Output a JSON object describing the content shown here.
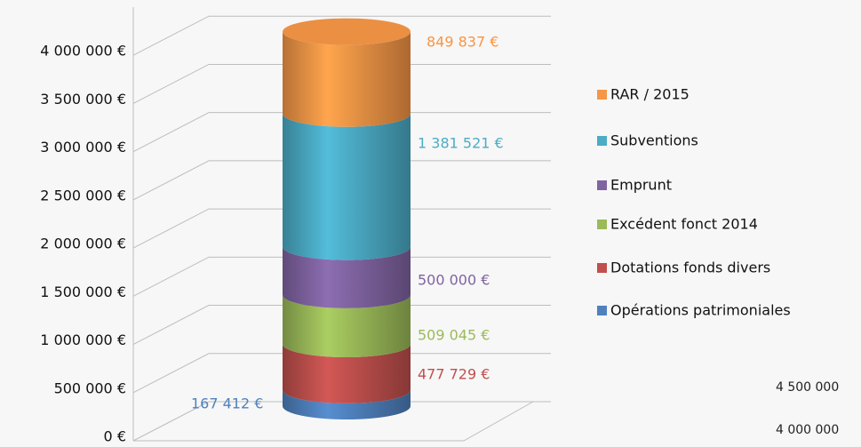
{
  "chart_data": {
    "type": "stacked-cylinder",
    "ylim": [
      0,
      4500000
    ],
    "yticks": [
      {
        "value": 0,
        "label": "0 €"
      },
      {
        "value": 500000,
        "label": "500 000 €"
      },
      {
        "value": 1000000,
        "label": "1 000 000 €"
      },
      {
        "value": 1500000,
        "label": "1 500 000 €"
      },
      {
        "value": 2000000,
        "label": "2 000 000 €"
      },
      {
        "value": 2500000,
        "label": "2 500 000 €"
      },
      {
        "value": 3000000,
        "label": "3 000 000 €"
      },
      {
        "value": 3500000,
        "label": "3 500 000 €"
      },
      {
        "value": 4000000,
        "label": "4 000 000 €"
      }
    ],
    "grid": true,
    "legend": "right",
    "series": [
      {
        "name": "Opérations patrimoniales",
        "color": "#4f81bd",
        "values": [
          167412
        ],
        "value_labels": [
          "167 412 €"
        ]
      },
      {
        "name": "Dotations fonds divers",
        "color": "#c0504d",
        "values": [
          477729
        ],
        "value_labels": [
          "477 729 €"
        ]
      },
      {
        "name": "Excédent fonct 2014",
        "color": "#9bbb59",
        "values": [
          509045
        ],
        "value_labels": [
          "509 045 €"
        ]
      },
      {
        "name": "Emprunt",
        "color": "#8064a2",
        "values": [
          500000
        ],
        "value_labels": [
          "500 000 €"
        ]
      },
      {
        "name": "Subventions",
        "color": "#4bacc6",
        "values": [
          1381521
        ],
        "value_labels": [
          "1 381 521 €"
        ]
      },
      {
        "name": "RAR / 2015",
        "color": "#f79646",
        "values": [
          849837
        ],
        "value_labels": [
          "849 837 €"
        ]
      }
    ],
    "background_labels": [
      "4 500 000",
      "4 000 000"
    ]
  }
}
